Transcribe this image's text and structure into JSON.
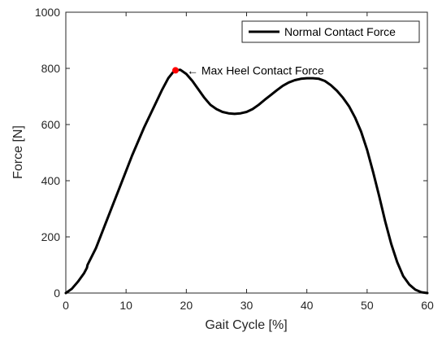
{
  "chart_data": {
    "type": "line",
    "title": "",
    "xlabel": "Gait Cycle [%]",
    "ylabel": "Force [N]",
    "xlim": [
      0,
      60
    ],
    "ylim": [
      0,
      1000
    ],
    "xticks": [
      0,
      10,
      20,
      30,
      40,
      50,
      60
    ],
    "yticks": [
      0,
      200,
      400,
      600,
      800,
      1000
    ],
    "grid": false,
    "legend": {
      "placement": "top-right",
      "entries": [
        "Normal Contact Force"
      ]
    },
    "series": [
      {
        "name": "Normal Contact Force",
        "color": "#000000",
        "x": [
          0,
          1,
          2,
          3,
          3.5,
          3.6,
          5,
          7,
          9,
          11,
          13,
          15,
          16,
          17,
          18,
          19,
          20,
          21,
          22,
          23,
          24,
          25,
          26,
          27,
          28,
          29,
          30,
          31,
          32,
          33,
          34,
          35,
          36,
          37,
          38,
          39,
          40,
          41,
          42,
          43,
          44,
          45,
          46,
          47,
          48,
          49,
          50,
          51,
          52,
          53,
          54,
          55,
          56,
          57,
          58,
          59,
          60
        ],
        "y": [
          0,
          15,
          40,
          70,
          90,
          100,
          160,
          270,
          380,
          490,
          590,
          680,
          725,
          765,
          792,
          795,
          780,
          755,
          725,
          695,
          670,
          655,
          645,
          640,
          638,
          640,
          645,
          655,
          670,
          688,
          705,
          722,
          738,
          750,
          758,
          763,
          765,
          765,
          763,
          755,
          740,
          720,
          695,
          665,
          625,
          575,
          510,
          430,
          345,
          255,
          175,
          110,
          60,
          30,
          12,
          3,
          0
        ]
      }
    ],
    "annotations": [
      {
        "text": "← Max Heel Contact Force",
        "x": 18.2,
        "y": 793,
        "marker_color": "#ff0000"
      }
    ]
  }
}
